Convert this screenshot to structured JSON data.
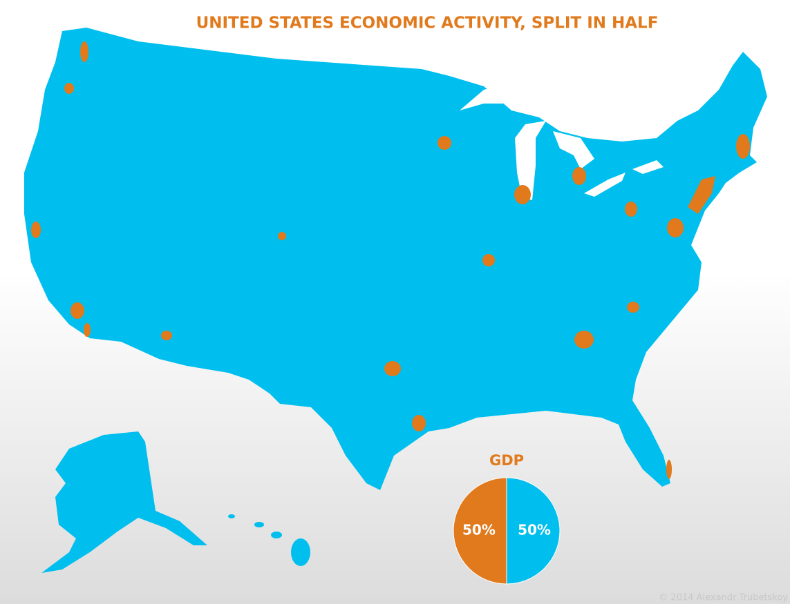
{
  "title": "UNITED STATES ECONOMIC ACTIVITY, SPLIT IN HALF",
  "credit": "© 2014 Alexandr Trubetskoy",
  "chart_data": {
    "type": "pie",
    "title": "GDP",
    "values": [
      50,
      50
    ],
    "value_labels": [
      "50%",
      "50%"
    ],
    "colors": [
      "#e07a1c",
      "#00bfee"
    ]
  }
}
